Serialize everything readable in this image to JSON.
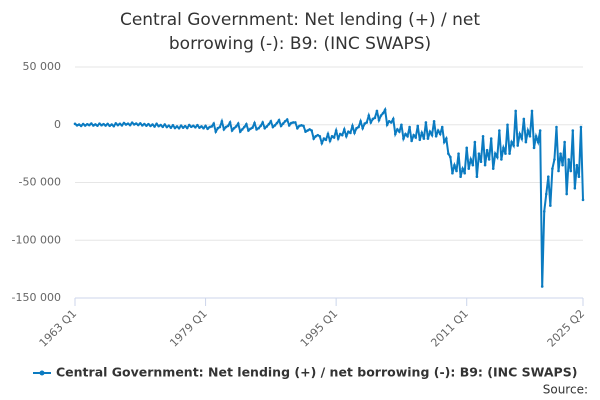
{
  "chart_data": {
    "type": "line",
    "title": "Central Government: Net lending (+) / net borrowing (-): B9: (INC SWAPS)",
    "source": "Source:",
    "categories": [
      "1963 Q1",
      null,
      null,
      null,
      null,
      null,
      null,
      null,
      null,
      null,
      null,
      null,
      null,
      null,
      null,
      null,
      null,
      null,
      null,
      null,
      null,
      null,
      null,
      null,
      null,
      null,
      null,
      null,
      null,
      null,
      null,
      null,
      null,
      null,
      null,
      null,
      null,
      null,
      null,
      null,
      null,
      null,
      null,
      null,
      null,
      null,
      null,
      null,
      null,
      null,
      null,
      null,
      null,
      null,
      null,
      null,
      null,
      null,
      null,
      null,
      null,
      null,
      null,
      null,
      "1979 Q1",
      null,
      null,
      null,
      null,
      null,
      null,
      null,
      null,
      null,
      null,
      null,
      null,
      null,
      null,
      null,
      null,
      null,
      null,
      null,
      null,
      null,
      null,
      null,
      null,
      null,
      null,
      null,
      null,
      null,
      null,
      null,
      null,
      null,
      null,
      null,
      null,
      null,
      null,
      null,
      null,
      null,
      null,
      null,
      null,
      null,
      null,
      null,
      null,
      null,
      null,
      null,
      null,
      null,
      null,
      null,
      null,
      null,
      null,
      null,
      null,
      null,
      null,
      null,
      "1995 Q1",
      null,
      null,
      null,
      null,
      null,
      null,
      null,
      null,
      null,
      null,
      null,
      null,
      null,
      null,
      null,
      null,
      null,
      null,
      null,
      null,
      null,
      null,
      null,
      null,
      null,
      null,
      null,
      null,
      null,
      null,
      null,
      null,
      null,
      null,
      null,
      null,
      null,
      null,
      null,
      null,
      null,
      null,
      null,
      null,
      null,
      null,
      null,
      null,
      null,
      null,
      null,
      null,
      null,
      null,
      null,
      null,
      null,
      null,
      null,
      null,
      null,
      null,
      null,
      "2011 Q1",
      null,
      null,
      null,
      null,
      null,
      null,
      null,
      null,
      null,
      null,
      null,
      null,
      null,
      null,
      null,
      null,
      null,
      null,
      null,
      null,
      null,
      null,
      null,
      null,
      null,
      null,
      null,
      null,
      null,
      null,
      null,
      null,
      null,
      null,
      null,
      null,
      null,
      null,
      null,
      null,
      null,
      null,
      null,
      null,
      null,
      null,
      null,
      null,
      null,
      null,
      null,
      null,
      null,
      null,
      null,
      null,
      "2025 Q2"
    ],
    "series": [
      {
        "name": "Central Government: Net lending (+) / net borrowing (-): B9: (INC SWAPS)",
        "color": "#0b7bc1",
        "values": [
          800,
          -500,
          200,
          -1000,
          600,
          -700,
          400,
          -300,
          1000,
          -600,
          300,
          -800,
          900,
          -400,
          500,
          -700,
          700,
          -900,
          200,
          -1200,
          1200,
          -300,
          800,
          -500,
          1500,
          200,
          900,
          -300,
          1800,
          300,
          1000,
          -200,
          1200,
          -500,
          600,
          -800,
          500,
          -1000,
          200,
          -1500,
          800,
          -1200,
          -300,
          -1800,
          200,
          -2000,
          -800,
          -2500,
          -500,
          -2800,
          -1500,
          -3000,
          -800,
          -2500,
          -1200,
          -2800,
          -300,
          -1800,
          -900,
          -2200,
          -400,
          -2500,
          -1500,
          -3000,
          -1000,
          -3500,
          -2000,
          -1500,
          1000,
          -6000,
          -3000,
          -2000,
          3000,
          -4000,
          -2000,
          -1000,
          2000,
          -5000,
          -3000,
          -1500,
          1000,
          -6000,
          -4000,
          -2000,
          500,
          -5000,
          -3500,
          -2500,
          1500,
          -4000,
          -3000,
          -1000,
          2000,
          -3000,
          -1500,
          500,
          3000,
          -2000,
          -500,
          1500,
          4000,
          -1000,
          1000,
          3000,
          4500,
          -500,
          1500,
          2000,
          2000,
          -3000,
          -1000,
          -500,
          -1000,
          -6000,
          -5000,
          -4000,
          -5000,
          -12000,
          -10000,
          -9000,
          -10000,
          -16000,
          -12000,
          -13000,
          -8000,
          -14000,
          -10000,
          -11000,
          -5000,
          -12000,
          -8000,
          -9000,
          -4000,
          -10000,
          -6000,
          -7000,
          -1000,
          -7000,
          -3000,
          -2000,
          3000,
          -3000,
          1000,
          2000,
          8000,
          2000,
          5000,
          6000,
          12000,
          4000,
          8000,
          10000,
          13000,
          0,
          3000,
          2000,
          5000,
          -8000,
          -4000,
          -6000,
          0,
          -12000,
          -8000,
          -10000,
          -2000,
          -14000,
          -9000,
          -11000,
          -1000,
          -13000,
          -7000,
          -12000,
          2000,
          -12000,
          -6000,
          -9000,
          3000,
          -10000,
          -5000,
          -8000,
          -2000,
          -15000,
          -12000,
          -25000,
          -28000,
          -42000,
          -35000,
          -40000,
          -25000,
          -45000,
          -38000,
          -42000,
          -20000,
          -38000,
          -30000,
          -35000,
          -15000,
          -45000,
          -25000,
          -32000,
          -10000,
          -35000,
          -22000,
          -30000,
          -12000,
          -38000,
          -25000,
          -28000,
          -5000,
          -30000,
          -20000,
          -25000,
          0,
          -25000,
          -15000,
          -18000,
          12000,
          -18000,
          -8000,
          -12000,
          5000,
          -15000,
          -5000,
          -10000,
          12000,
          -20000,
          -10000,
          -15000,
          -5000,
          -140000,
          -75000,
          -60000,
          -45000,
          -70000,
          -38000,
          -30000,
          -2000,
          -40000,
          -25000,
          -35000,
          -15000,
          -60000,
          -30000,
          -40000,
          -5000,
          -55000,
          -35000,
          -45000,
          -2000,
          -65000
        ]
      }
    ],
    "ylim": [
      -150000,
      50000
    ],
    "yticks": [
      {
        "value": -150000,
        "label": "-150 000"
      },
      {
        "value": -100000,
        "label": "-100 000"
      },
      {
        "value": -50000,
        "label": "-50 000"
      },
      0,
      {
        "value": 50000,
        "label": "50 000"
      }
    ],
    "grid": true
  }
}
